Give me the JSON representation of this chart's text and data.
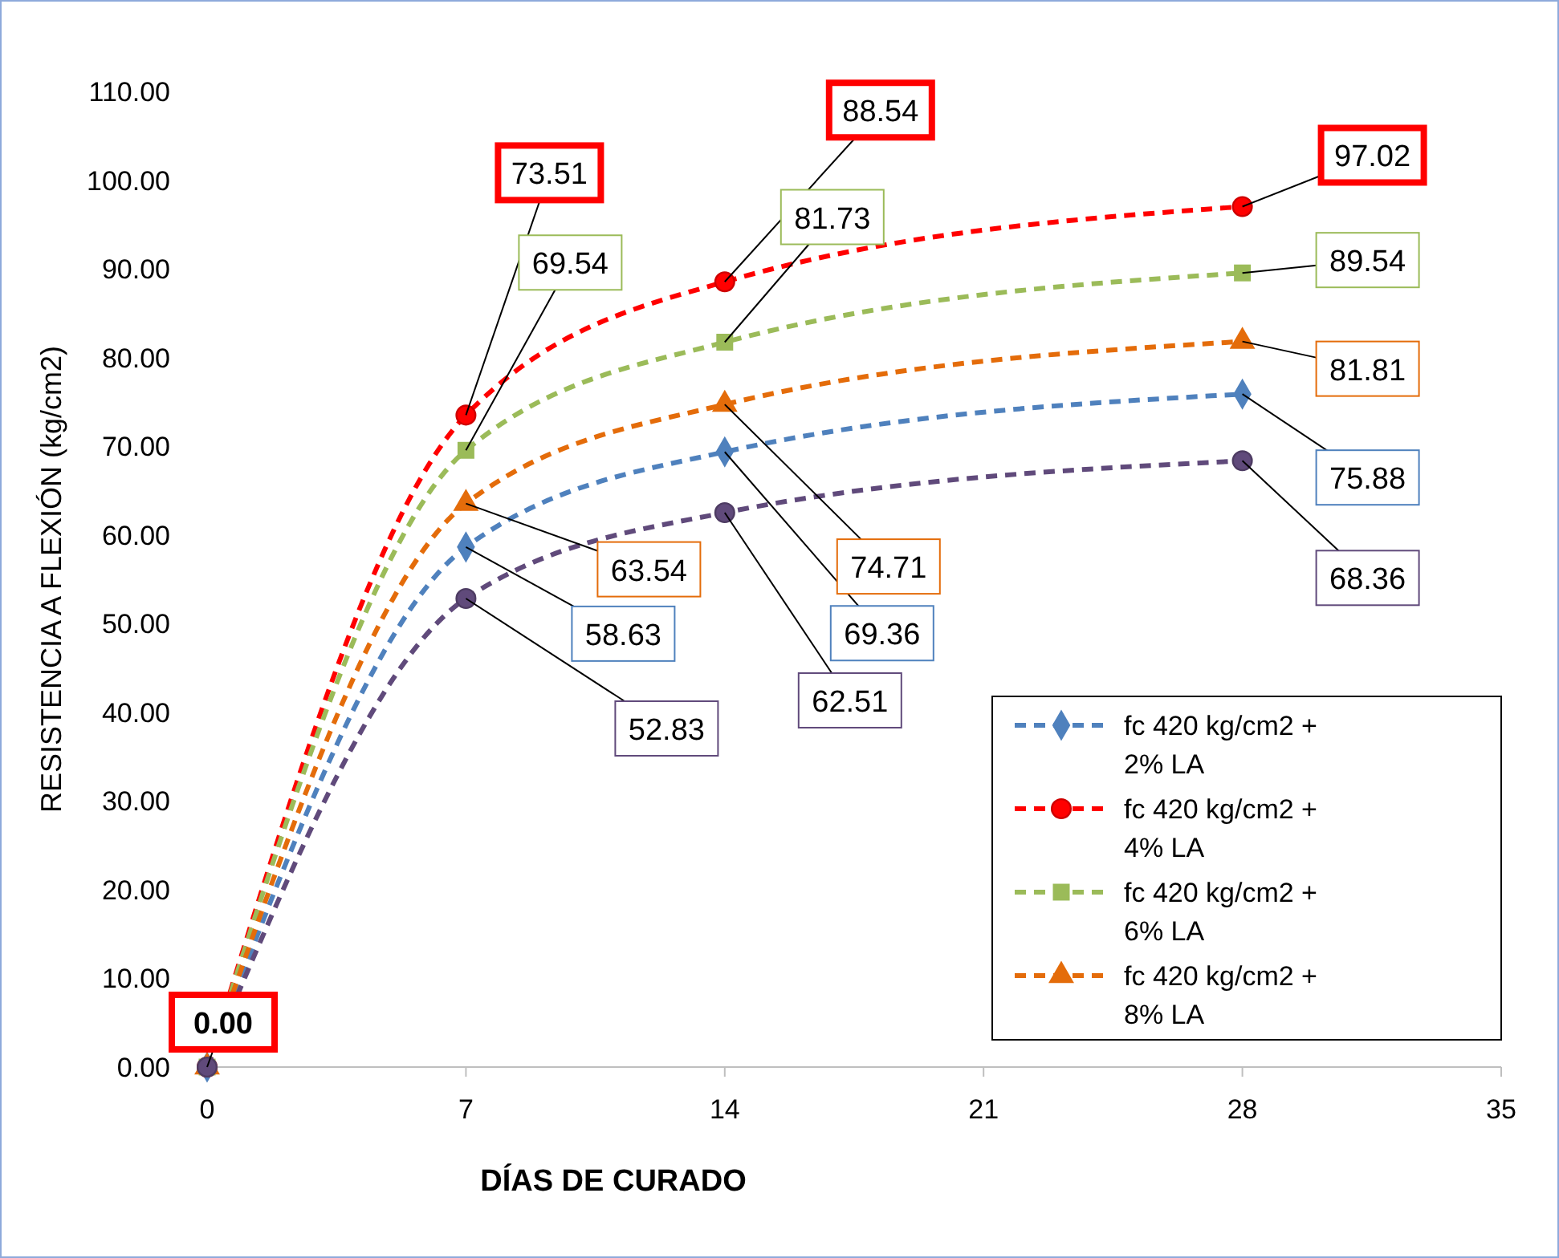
{
  "chart_data": {
    "type": "line",
    "xlabel": "DÍAS DE CURADO",
    "ylabel": "RESISTENCIA A FLEXIÓN (kg/cm2)",
    "x": [
      0,
      7,
      14,
      28
    ],
    "xlim": [
      0,
      35
    ],
    "xticks": [
      0,
      7,
      14,
      21,
      28,
      35
    ],
    "ylim": [
      0,
      110
    ],
    "yticks": [
      {
        "value": 0,
        "label": "0.00"
      },
      {
        "value": 10,
        "label": "10.00"
      },
      {
        "value": 20,
        "label": "20.00"
      },
      {
        "value": 30,
        "label": "30.00"
      },
      {
        "value": 40,
        "label": "40.00"
      },
      {
        "value": 50,
        "label": "50.00"
      },
      {
        "value": 60,
        "label": "60.00"
      },
      {
        "value": 70,
        "label": "70.00"
      },
      {
        "value": 80,
        "label": "80.00"
      },
      {
        "value": 90,
        "label": "90.00"
      },
      {
        "value": 100,
        "label": "100.00"
      },
      {
        "value": 110,
        "label": "110.00"
      }
    ],
    "grid": false,
    "legend": "bottom right",
    "line_style": "dashed",
    "series": [
      {
        "name": "fc 420 kg/cm2 + 2% LA",
        "color": "#4f81bd",
        "marker": "diamond",
        "values": [
          0,
          58.63,
          69.36,
          75.88
        ],
        "value_labels": [
          null,
          "58.63",
          "69.36",
          "75.88"
        ]
      },
      {
        "name": "fc 420 kg/cm2 + 4% LA",
        "color": "#ff0000",
        "marker": "circle",
        "values": [
          0,
          73.51,
          88.54,
          97.02
        ],
        "value_labels": [
          "0.00",
          "73.51",
          "88.54",
          "97.02"
        ]
      },
      {
        "name": "fc 420 kg/cm2 + 6% LA",
        "color": "#9bbb59",
        "marker": "square",
        "values": [
          0,
          69.54,
          81.73,
          89.54
        ],
        "value_labels": [
          null,
          "69.54",
          "81.73",
          "89.54"
        ]
      },
      {
        "name": "fc 420 kg/cm2 + 8% LA",
        "color": "#e46c0a",
        "marker": "triangle",
        "values": [
          0,
          63.54,
          74.71,
          81.81
        ],
        "value_labels": [
          null,
          "63.54",
          "74.71",
          "81.81"
        ]
      },
      {
        "color": "#604a7b",
        "marker": "circle",
        "values": [
          0,
          52.83,
          62.51,
          68.36
        ],
        "value_labels": [
          null,
          "52.83",
          "62.51",
          "68.36"
        ]
      }
    ]
  }
}
